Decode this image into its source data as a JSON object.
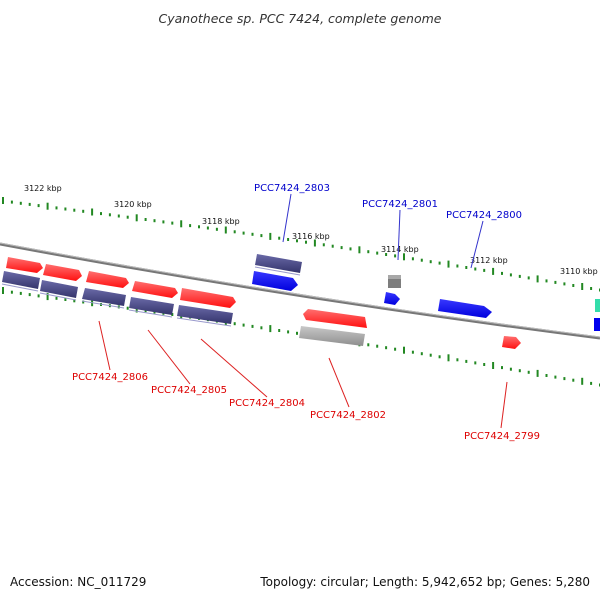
{
  "title": "Cyanothece sp. PCC 7424, complete genome",
  "scale_labels": [
    "3122 kbp",
    "3120 kbp",
    "3118 kbp",
    "3116 kbp",
    "3114 kbp",
    "3112 kbp",
    "3110 kbp"
  ],
  "gene_labels": {
    "PCC7424_2803": "PCC7424_2803",
    "PCC7424_2801": "PCC7424_2801",
    "PCC7424_2800": "PCC7424_2800",
    "PCC7424_2806": "PCC7424_2806",
    "PCC7424_2805": "PCC7424_2805",
    "PCC7424_2804": "PCC7424_2804",
    "PCC7424_2802": "PCC7424_2802",
    "PCC7424_2799": "PCC7424_2799"
  },
  "colors": {
    "backbone": "#888888",
    "gene_red": "#ff1a1a",
    "gene_purple": "#4a4a8c",
    "gene_blue": "#0000ff",
    "gene_gray": "#aaaaaa",
    "gene_teal": "#33ddaa",
    "tick_green": "#228822",
    "label_blue": "#0000cc",
    "label_red": "#dd0000"
  },
  "footer": {
    "accession": "Accession: NC_011729",
    "info": "Topology: circular; Length: 5,942,652 bp; Genes: 5,280"
  }
}
